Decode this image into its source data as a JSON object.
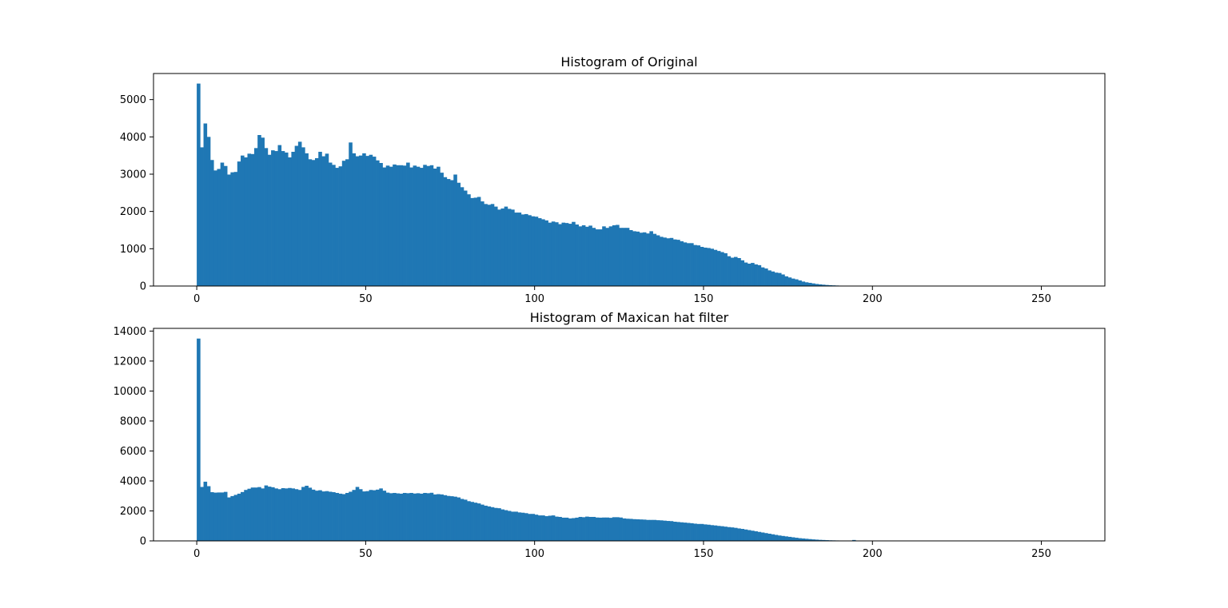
{
  "figure": {
    "background": "#ffffff",
    "bar_color": "#1f77b4"
  },
  "chart_data": [
    {
      "type": "bar",
      "title": "Histogram of Original",
      "xlabel": "",
      "ylabel": "",
      "xlim": [
        -12.8,
        268.8
      ],
      "ylim": [
        0,
        5700
      ],
      "xticks": [
        0,
        50,
        100,
        150,
        200,
        250
      ],
      "yticks": [
        0,
        1000,
        2000,
        3000,
        4000,
        5000
      ],
      "grid": false,
      "bin_start": 0,
      "bin_width": 1,
      "values": [
        5430,
        3720,
        4360,
        4000,
        3380,
        3100,
        3140,
        3310,
        3220,
        2990,
        3050,
        3060,
        3340,
        3500,
        3450,
        3550,
        3540,
        3700,
        4050,
        3980,
        3700,
        3520,
        3640,
        3620,
        3780,
        3620,
        3580,
        3450,
        3600,
        3760,
        3870,
        3720,
        3560,
        3400,
        3380,
        3430,
        3600,
        3480,
        3550,
        3310,
        3250,
        3170,
        3210,
        3360,
        3400,
        3850,
        3560,
        3480,
        3500,
        3560,
        3490,
        3520,
        3470,
        3370,
        3300,
        3180,
        3230,
        3200,
        3260,
        3240,
        3240,
        3230,
        3310,
        3180,
        3230,
        3200,
        3170,
        3250,
        3220,
        3240,
        3150,
        3200,
        3040,
        2920,
        2870,
        2840,
        2990,
        2770,
        2650,
        2560,
        2460,
        2360,
        2370,
        2390,
        2270,
        2200,
        2180,
        2200,
        2130,
        2050,
        2080,
        2130,
        2070,
        2050,
        1970,
        1970,
        1920,
        1930,
        1900,
        1870,
        1860,
        1820,
        1790,
        1760,
        1700,
        1730,
        1710,
        1660,
        1700,
        1690,
        1670,
        1720,
        1650,
        1600,
        1630,
        1590,
        1620,
        1560,
        1520,
        1520,
        1600,
        1560,
        1600,
        1630,
        1640,
        1560,
        1560,
        1560,
        1500,
        1470,
        1460,
        1430,
        1440,
        1410,
        1470,
        1400,
        1360,
        1320,
        1300,
        1280,
        1290,
        1250,
        1240,
        1200,
        1170,
        1150,
        1150,
        1100,
        1090,
        1050,
        1030,
        1020,
        1000,
        970,
        940,
        910,
        880,
        800,
        760,
        780,
        750,
        690,
        630,
        600,
        620,
        580,
        560,
        500,
        470,
        420,
        390,
        360,
        350,
        310,
        260,
        230,
        200,
        180,
        150,
        120,
        100,
        85,
        70,
        55,
        45,
        36,
        28,
        22,
        18,
        14,
        11,
        8,
        6,
        4,
        3,
        2,
        2,
        1,
        1,
        1,
        0,
        0,
        0,
        0,
        0,
        0,
        0,
        0,
        0,
        0,
        0,
        0,
        0,
        0,
        0,
        0,
        0,
        0,
        0,
        0,
        0,
        0,
        0,
        0,
        0,
        0,
        0,
        0,
        0,
        0,
        0,
        0,
        0,
        0,
        0,
        0,
        0,
        0,
        0,
        0,
        0,
        0,
        0,
        0,
        0,
        0,
        0,
        0,
        0,
        0,
        0,
        0,
        0,
        0,
        0,
        0,
        0,
        0,
        0,
        0,
        0,
        0,
        0,
        0,
        0,
        0,
        0,
        0,
        0,
        0,
        0,
        0,
        0
      ]
    },
    {
      "type": "bar",
      "title": "Histogram of Maxican hat filter",
      "xlabel": "",
      "ylabel": "",
      "xlim": [
        -12.8,
        268.8
      ],
      "ylim": [
        0,
        14180
      ],
      "xticks": [
        0,
        50,
        100,
        150,
        200,
        250
      ],
      "yticks": [
        0,
        2000,
        4000,
        6000,
        8000,
        10000,
        12000,
        14000
      ],
      "grid": false,
      "bin_start": 0,
      "bin_width": 1,
      "values": [
        13500,
        3600,
        3950,
        3650,
        3250,
        3220,
        3230,
        3230,
        3270,
        2900,
        2990,
        3070,
        3150,
        3260,
        3400,
        3480,
        3560,
        3560,
        3590,
        3500,
        3700,
        3620,
        3580,
        3500,
        3450,
        3520,
        3500,
        3530,
        3500,
        3450,
        3400,
        3600,
        3680,
        3550,
        3420,
        3350,
        3380,
        3300,
        3320,
        3280,
        3250,
        3200,
        3150,
        3120,
        3200,
        3280,
        3400,
        3600,
        3450,
        3300,
        3320,
        3400,
        3380,
        3420,
        3500,
        3350,
        3220,
        3180,
        3200,
        3170,
        3150,
        3200,
        3180,
        3200,
        3160,
        3180,
        3150,
        3200,
        3180,
        3210,
        3100,
        3120,
        3100,
        3050,
        3000,
        2980,
        2950,
        2900,
        2800,
        2750,
        2650,
        2600,
        2550,
        2500,
        2420,
        2350,
        2300,
        2250,
        2200,
        2180,
        2100,
        2050,
        2000,
        1950,
        1950,
        1900,
        1880,
        1850,
        1800,
        1800,
        1750,
        1700,
        1700,
        1650,
        1680,
        1700,
        1620,
        1600,
        1550,
        1550,
        1500,
        1520,
        1550,
        1600,
        1580,
        1620,
        1600,
        1600,
        1560,
        1550,
        1560,
        1560,
        1540,
        1580,
        1580,
        1560,
        1500,
        1480,
        1470,
        1450,
        1440,
        1430,
        1420,
        1400,
        1400,
        1400,
        1380,
        1370,
        1350,
        1330,
        1320,
        1280,
        1260,
        1240,
        1220,
        1200,
        1180,
        1150,
        1130,
        1130,
        1100,
        1080,
        1050,
        1030,
        1000,
        980,
        950,
        920,
        900,
        870,
        830,
        800,
        760,
        720,
        680,
        640,
        600,
        560,
        520,
        480,
        440,
        400,
        360,
        330,
        300,
        270,
        240,
        210,
        180,
        160,
        140,
        120,
        100,
        85,
        70,
        60,
        50,
        40,
        35,
        30,
        25,
        20,
        15,
        12,
        60,
        10,
        8,
        6,
        4,
        3,
        2,
        2,
        1,
        1,
        0,
        0,
        0,
        0,
        0,
        0,
        0,
        0,
        0,
        0,
        0,
        0,
        0,
        0,
        0,
        0,
        0,
        0,
        0,
        0,
        0,
        0,
        0,
        0,
        0,
        0,
        0,
        0,
        0,
        0,
        0,
        0,
        0,
        0,
        0,
        0,
        0,
        0,
        0,
        0,
        0,
        0,
        0,
        0,
        0,
        0,
        0,
        0,
        0,
        0,
        0,
        0,
        0,
        0,
        0,
        0,
        0,
        0,
        0,
        0,
        0,
        0,
        0,
        0,
        0,
        0,
        0,
        0,
        0,
        0,
        0,
        0,
        0,
        0,
        0
      ]
    }
  ]
}
